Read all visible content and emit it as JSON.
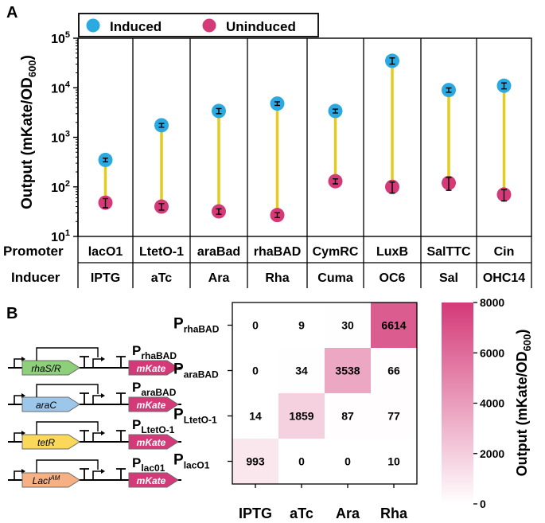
{
  "chart_data": [
    {
      "type": "scatter",
      "panel": "A",
      "scale": "log",
      "ylabel_main": "Output (mKate/OD",
      "ylabel_sub": "600",
      "ylabel_close": ")",
      "ylim": [
        10,
        100000
      ],
      "yticks": [
        {
          "base": "10",
          "exp": "1",
          "value": 10
        },
        {
          "base": "10",
          "exp": "2",
          "value": 100
        },
        {
          "base": "10",
          "exp": "3",
          "value": 1000
        },
        {
          "base": "10",
          "exp": "4",
          "value": 10000
        },
        {
          "base": "10",
          "exp": "5",
          "value": 100000
        }
      ],
      "legend": [
        {
          "name": "Induced",
          "color": "#2ba9e1"
        },
        {
          "name": "Uninduced",
          "color": "#d43a78"
        }
      ],
      "row_labels": {
        "promoter": "Promoter",
        "inducer": "Inducer"
      },
      "categories": [
        {
          "promoter": "lacO1",
          "inducer": "IPTG",
          "induced": 350,
          "induced_err": 30,
          "uninduced": 48,
          "uninduced_err": 10
        },
        {
          "promoter": "LtetO-1",
          "inducer": "aTc",
          "induced": 1750,
          "induced_err": 150,
          "uninduced": 40,
          "uninduced_err": 6
        },
        {
          "promoter": "araBad",
          "inducer": "Ara",
          "induced": 3400,
          "induced_err": 400,
          "uninduced": 32,
          "uninduced_err": 4
        },
        {
          "promoter": "rhaBAD",
          "inducer": "Rha",
          "induced": 4800,
          "induced_err": 400,
          "uninduced": 27,
          "uninduced_err": 3
        },
        {
          "promoter": "CymRC",
          "inducer": "Cuma",
          "induced": 3400,
          "induced_err": 300,
          "uninduced": 130,
          "uninduced_err": 15
        },
        {
          "promoter": "LuxB",
          "inducer": "OC6",
          "induced": 35000,
          "induced_err": 5000,
          "uninduced": 100,
          "uninduced_err": 25
        },
        {
          "promoter": "SalTTC",
          "inducer": "Sal",
          "induced": 9000,
          "induced_err": 900,
          "uninduced": 120,
          "uninduced_err": 35
        },
        {
          "promoter": "Cin",
          "inducer": "OHC14",
          "induced": 11000,
          "induced_err": 1500,
          "uninduced": 70,
          "uninduced_err": 18
        }
      ]
    },
    {
      "type": "heatmap",
      "panel": "B",
      "columns": [
        "IPTG",
        "aTc",
        "Ara",
        "Rha"
      ],
      "rows": [
        {
          "base": "P",
          "sub": "rhaBAD",
          "values": [
            0,
            9,
            30,
            6614
          ]
        },
        {
          "base": "P",
          "sub": "araBAD",
          "values": [
            0,
            34,
            3538,
            66
          ]
        },
        {
          "base": "P",
          "sub": "LtetO-1",
          "values": [
            14,
            1859,
            87,
            77
          ]
        },
        {
          "base": "P",
          "sub": "lacO1",
          "values": [
            993,
            0,
            0,
            10
          ]
        }
      ],
      "colorbar": {
        "min": 0,
        "max": 8000,
        "ticks": [
          "0",
          "2000",
          "4000",
          "6000",
          "8000"
        ],
        "label_main": "Output (mKate/OD",
        "label_sub": "600",
        "label_close": ")",
        "color_low": "#ffffff",
        "color_high": "#d43a78"
      }
    }
  ],
  "panel_labels": {
    "a": "A",
    "b": "B"
  },
  "genetic_circuits": [
    {
      "regulator": "rhaS/R",
      "regulator_sup": "",
      "color": "#8ed07a",
      "reporter": "mKate",
      "promoter_base": "P",
      "promoter_sub": "rhaBAD"
    },
    {
      "regulator": "araC",
      "regulator_sup": "",
      "color": "#9cc6ea",
      "reporter": "mKate",
      "promoter_base": "P",
      "promoter_sub": "araBAD"
    },
    {
      "regulator": "tetR",
      "regulator_sup": "",
      "color": "#fbd75a",
      "reporter": "mKate",
      "promoter_base": "P",
      "promoter_sub": "LtetO-1"
    },
    {
      "regulator": "LacI",
      "regulator_sup": "AM",
      "color": "#f6b083",
      "reporter": "mKate",
      "promoter_base": "P",
      "promoter_sub": "lac01"
    }
  ],
  "colors": {
    "induced": "#2ba9e1",
    "uninduced": "#d43a78",
    "connector": "#e3cc1f",
    "reporter": "#d43a78"
  }
}
